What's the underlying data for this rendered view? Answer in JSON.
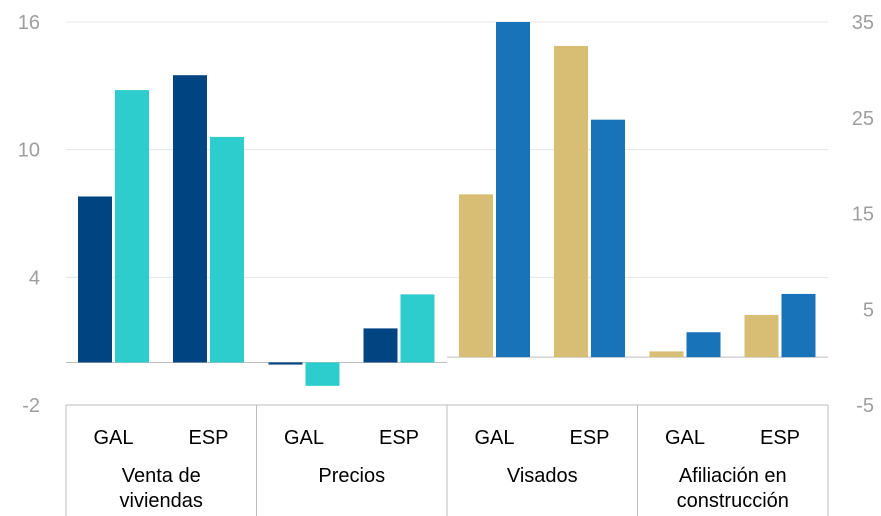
{
  "chart_data": {
    "type": "bar",
    "grid": true,
    "legend": "none",
    "groups": [
      {
        "label": "Venta de viviendas",
        "axis": "left",
        "bars": [
          {
            "category": "GAL",
            "value": 7.8,
            "color": "#004481"
          },
          {
            "category": "GAL",
            "value": 12.8,
            "color": "#2DCCCD"
          },
          {
            "category": "ESP",
            "value": 13.5,
            "color": "#004481"
          },
          {
            "category": "ESP",
            "value": 10.6,
            "color": "#2DCCCD"
          }
        ]
      },
      {
        "label": "Precios",
        "axis": "left",
        "bars": [
          {
            "category": "GAL",
            "value": -0.1,
            "color": "#004481"
          },
          {
            "category": "GAL",
            "value": -1.1,
            "color": "#2DCCCD"
          },
          {
            "category": "ESP",
            "value": 1.6,
            "color": "#004481"
          },
          {
            "category": "ESP",
            "value": 3.2,
            "color": "#2DCCCD"
          }
        ]
      },
      {
        "label": "Visados",
        "axis": "right",
        "bars": [
          {
            "category": "GAL",
            "value": 17.0,
            "color": "#D8BE75"
          },
          {
            "category": "GAL",
            "value": 35.0,
            "color": "#1973B8"
          },
          {
            "category": "ESP",
            "value": 32.5,
            "color": "#D8BE75"
          },
          {
            "category": "ESP",
            "value": 24.8,
            "color": "#1973B8"
          }
        ]
      },
      {
        "label": "Afiliación en construcción",
        "axis": "right",
        "bars": [
          {
            "category": "GAL",
            "value": 0.6,
            "color": "#D8BE75"
          },
          {
            "category": "GAL",
            "value": 2.6,
            "color": "#1973B8"
          },
          {
            "category": "ESP",
            "value": 4.4,
            "color": "#D8BE75"
          },
          {
            "category": "ESP",
            "value": 6.6,
            "color": "#1973B8"
          }
        ]
      }
    ],
    "group_label_lines": [
      [
        "Venta de",
        "viviendas"
      ],
      [
        "Precios"
      ],
      [
        "Visados"
      ],
      [
        "Afiliación en",
        "construcción"
      ]
    ],
    "left_axis": {
      "ylim": [
        -2,
        16
      ],
      "ticks": [
        -2,
        4,
        10,
        16
      ]
    },
    "right_axis": {
      "ylim": [
        -5,
        35
      ],
      "ticks": [
        -5,
        5,
        15,
        25,
        35
      ]
    }
  }
}
